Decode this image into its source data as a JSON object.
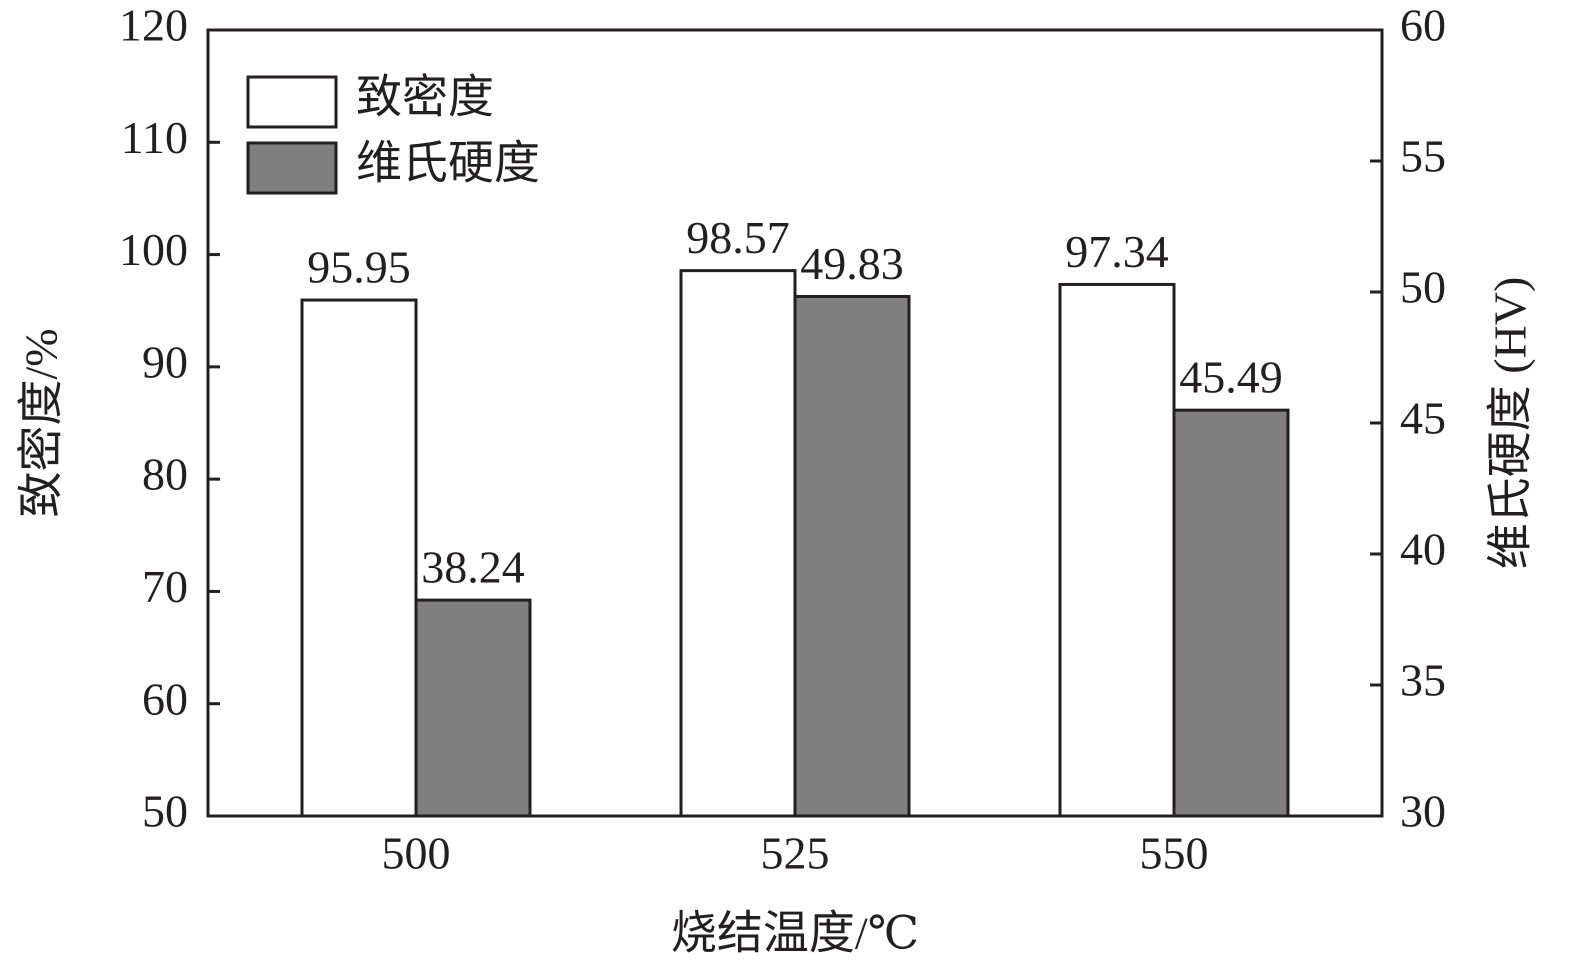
{
  "chart_data": {
    "type": "bar",
    "categories": [
      "500",
      "525",
      "550"
    ],
    "series": [
      {
        "name": "致密度",
        "color": "#ffffff",
        "values": [
          95.95,
          98.57,
          97.34
        ]
      },
      {
        "name": "维氏硬度",
        "color": "#7f7f7f",
        "values": [
          38.24,
          49.83,
          45.49
        ],
        "axis": "y2"
      }
    ],
    "xlabel": "烧结温度/℃",
    "ylabel": "致密度/%",
    "y2label": "维氏硬度 (HV)",
    "ylim": [
      50,
      120
    ],
    "yticks": [
      50,
      60,
      70,
      80,
      90,
      100,
      110,
      120
    ],
    "y2lim": [
      30,
      60
    ],
    "y2ticks": [
      30,
      35,
      40,
      45,
      50,
      55,
      60
    ],
    "legend": "upper left",
    "grid": false
  }
}
